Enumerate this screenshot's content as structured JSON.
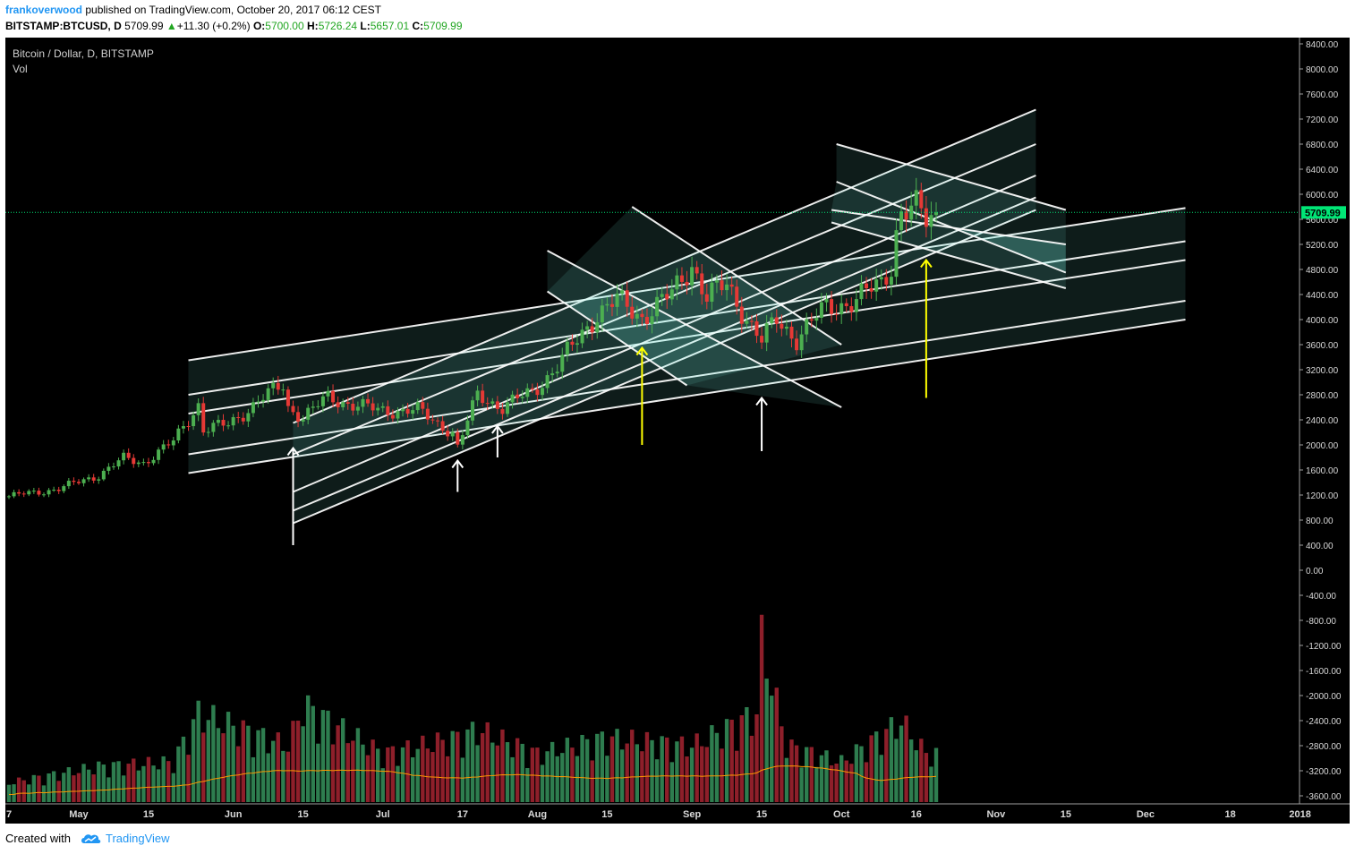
{
  "header": {
    "author": "frankoverwood",
    "published": "published on TradingView.com, October 20, 2017 06:12 CEST",
    "symbol": "BITSTAMP:BTCUSD, D",
    "last": "5709.99",
    "change_arrow": "▲",
    "change": "+11.30 (+0.2%)",
    "o_label": "O:",
    "o_val": "5700.00",
    "h_label": "H:",
    "h_val": "5726.24",
    "l_label": "L:",
    "l_val": "5657.01",
    "c_label": "C:",
    "c_val": "5709.99"
  },
  "footer": {
    "created_with": "Created with",
    "brand": "TradingView",
    "logo_icon": "tradingview-cloud-icon"
  },
  "colors": {
    "background": "#000000",
    "up": "#4caf50",
    "down": "#e53935",
    "vol_up": "#2e7d4f",
    "vol_down": "#8e1f2a",
    "channel_fill": "#7fffee",
    "channel_line": "#ffffff",
    "ma": "#ff9800",
    "arrow_yellow": "#ffff00",
    "arrow_white": "#ffffff",
    "price_label": "#00e676"
  },
  "chart_data": {
    "type": "candlestick",
    "title": "Bitcoin / Dollar, D, BITSTAMP",
    "subtitle": "Vol",
    "symbol": "BITSTAMP:BTCUSD",
    "interval": "D",
    "last_price": 5709.99,
    "last_price_label": "5709.99",
    "ylim": [
      -3800,
      8600
    ],
    "y_ticks": [
      "8400.00",
      "8000.00",
      "7600.00",
      "7200.00",
      "6800.00",
      "6400.00",
      "6000.00",
      "5600.00",
      "5200.00",
      "4800.00",
      "4400.00",
      "4000.00",
      "3600.00",
      "3200.00",
      "2800.00",
      "2400.00",
      "2000.00",
      "1600.00",
      "1200.00",
      "800.00",
      "400.00",
      "0.00",
      "-400.00",
      "-800.00",
      "-1200.00",
      "-1600.00",
      "-2000.00",
      "-2400.00",
      "-2800.00",
      "-3200.00",
      "-3600.00"
    ],
    "x_ticks": [
      {
        "label": "7",
        "date": "2017-04-17"
      },
      {
        "label": "May",
        "date": "2017-05-01"
      },
      {
        "label": "15",
        "date": "2017-05-15"
      },
      {
        "label": "Jun",
        "date": "2017-06-01"
      },
      {
        "label": "15",
        "date": "2017-06-15"
      },
      {
        "label": "Jul",
        "date": "2017-07-01"
      },
      {
        "label": "17",
        "date": "2017-07-17"
      },
      {
        "label": "Aug",
        "date": "2017-08-01"
      },
      {
        "label": "15",
        "date": "2017-08-15"
      },
      {
        "label": "Sep",
        "date": "2017-09-01"
      },
      {
        "label": "15",
        "date": "2017-09-15"
      },
      {
        "label": "Oct",
        "date": "2017-10-01"
      },
      {
        "label": "16",
        "date": "2017-10-16"
      },
      {
        "label": "Nov",
        "date": "2017-11-01"
      },
      {
        "label": "15",
        "date": "2017-11-15"
      },
      {
        "label": "Dec",
        "date": "2017-12-01"
      },
      {
        "label": "18",
        "date": "2017-12-18"
      },
      {
        "label": "2018",
        "date": "2018-01-01"
      }
    ],
    "price_path": [
      {
        "date": "2017-04-17",
        "price": 1180
      },
      {
        "date": "2017-04-27",
        "price": 1300
      },
      {
        "date": "2017-05-05",
        "price": 1520
      },
      {
        "date": "2017-05-10",
        "price": 1780
      },
      {
        "date": "2017-05-14",
        "price": 1720
      },
      {
        "date": "2017-05-20",
        "price": 2050
      },
      {
        "date": "2017-05-25",
        "price": 2650
      },
      {
        "date": "2017-05-26",
        "price": 2250
      },
      {
        "date": "2017-05-31",
        "price": 2320
      },
      {
        "date": "2017-06-06",
        "price": 2700
      },
      {
        "date": "2017-06-11",
        "price": 2950
      },
      {
        "date": "2017-06-12",
        "price": 2600
      },
      {
        "date": "2017-06-15",
        "price": 2450
      },
      {
        "date": "2017-06-20",
        "price": 2750
      },
      {
        "date": "2017-06-30",
        "price": 2550
      },
      {
        "date": "2017-07-08",
        "price": 2550
      },
      {
        "date": "2017-07-15",
        "price": 2200
      },
      {
        "date": "2017-07-16",
        "price": 1950
      },
      {
        "date": "2017-07-20",
        "price": 2800
      },
      {
        "date": "2017-07-25",
        "price": 2600
      },
      {
        "date": "2017-07-31",
        "price": 2850
      },
      {
        "date": "2017-08-05",
        "price": 3250
      },
      {
        "date": "2017-08-13",
        "price": 4100
      },
      {
        "date": "2017-08-17",
        "price": 4300
      },
      {
        "date": "2017-08-22",
        "price": 4050
      },
      {
        "date": "2017-08-28",
        "price": 4400
      },
      {
        "date": "2017-09-01",
        "price": 4900
      },
      {
        "date": "2017-09-04",
        "price": 4350
      },
      {
        "date": "2017-09-08",
        "price": 4550
      },
      {
        "date": "2017-09-13",
        "price": 3900
      },
      {
        "date": "2017-09-15",
        "price": 3650
      },
      {
        "date": "2017-09-18",
        "price": 4000
      },
      {
        "date": "2017-09-22",
        "price": 3700
      },
      {
        "date": "2017-09-28",
        "price": 4200
      },
      {
        "date": "2017-10-04",
        "price": 4300
      },
      {
        "date": "2017-10-09",
        "price": 4600
      },
      {
        "date": "2017-10-11",
        "price": 4900
      },
      {
        "date": "2017-10-12",
        "price": 5400
      },
      {
        "date": "2017-10-13",
        "price": 5700
      },
      {
        "date": "2017-10-16",
        "price": 5750
      },
      {
        "date": "2017-10-18",
        "price": 5600
      },
      {
        "date": "2017-10-20",
        "price": 5709.99
      }
    ],
    "volume_profile": [
      {
        "date": "2017-04-17",
        "level": 0.12
      },
      {
        "date": "2017-05-05",
        "level": 0.22
      },
      {
        "date": "2017-05-20",
        "level": 0.25
      },
      {
        "date": "2017-05-25",
        "level": 0.55
      },
      {
        "date": "2017-06-12",
        "level": 0.35
      },
      {
        "date": "2017-06-15",
        "level": 0.6
      },
      {
        "date": "2017-07-01",
        "level": 0.3
      },
      {
        "date": "2017-07-16",
        "level": 0.4
      },
      {
        "date": "2017-07-20",
        "level": 0.45
      },
      {
        "date": "2017-08-01",
        "level": 0.3
      },
      {
        "date": "2017-08-15",
        "level": 0.4
      },
      {
        "date": "2017-09-01",
        "level": 0.35
      },
      {
        "date": "2017-09-14",
        "level": 0.55
      },
      {
        "date": "2017-09-15",
        "level": 1.0
      },
      {
        "date": "2017-09-20",
        "level": 0.35
      },
      {
        "date": "2017-10-01",
        "level": 0.25
      },
      {
        "date": "2017-10-13",
        "level": 0.5
      },
      {
        "date": "2017-10-18",
        "level": 0.3
      }
    ],
    "channels": [
      {
        "kind": "ascending",
        "lines": [
          {
            "from": {
              "date": "2017-05-23",
              "price": 3350
            },
            "to": {
              "date": "2017-12-09",
              "price": 5780
            }
          },
          {
            "from": {
              "date": "2017-05-23",
              "price": 2800
            },
            "to": {
              "date": "2017-12-09",
              "price": 5250
            }
          },
          {
            "from": {
              "date": "2017-05-23",
              "price": 2500
            },
            "to": {
              "date": "2017-12-09",
              "price": 4950
            }
          },
          {
            "from": {
              "date": "2017-05-23",
              "price": 1850
            },
            "to": {
              "date": "2017-12-09",
              "price": 4300
            }
          },
          {
            "from": {
              "date": "2017-05-23",
              "price": 1550
            },
            "to": {
              "date": "2017-12-09",
              "price": 4000
            }
          }
        ]
      },
      {
        "kind": "ascending-steep",
        "lines": [
          {
            "from": {
              "date": "2017-06-13",
              "price": 2350
            },
            "to": {
              "date": "2017-11-09",
              "price": 7350
            }
          },
          {
            "from": {
              "date": "2017-06-13",
              "price": 1850
            },
            "to": {
              "date": "2017-11-09",
              "price": 6800
            }
          },
          {
            "from": {
              "date": "2017-06-13",
              "price": 1250
            },
            "to": {
              "date": "2017-11-09",
              "price": 6300
            }
          },
          {
            "from": {
              "date": "2017-06-13",
              "price": 950
            },
            "to": {
              "date": "2017-11-09",
              "price": 5950
            }
          },
          {
            "from": {
              "date": "2017-06-13",
              "price": 750
            },
            "to": {
              "date": "2017-11-09",
              "price": 5750
            }
          }
        ]
      },
      {
        "kind": "descending",
        "lines": [
          {
            "from": {
              "date": "2017-08-03",
              "price": 5100
            },
            "to": {
              "date": "2017-10-01",
              "price": 2600
            }
          },
          {
            "from": {
              "date": "2017-08-03",
              "price": 4450
            },
            "to": {
              "date": "2017-08-31",
              "price": 2950
            }
          },
          {
            "from": {
              "date": "2017-08-20",
              "price": 5800
            },
            "to": {
              "date": "2017-10-01",
              "price": 3600
            }
          }
        ]
      },
      {
        "kind": "descending-upper",
        "lines": [
          {
            "from": {
              "date": "2017-09-30",
              "price": 6800
            },
            "to": {
              "date": "2017-11-15",
              "price": 5750
            }
          },
          {
            "from": {
              "date": "2017-09-30",
              "price": 6200
            },
            "to": {
              "date": "2017-11-15",
              "price": 4750
            }
          },
          {
            "from": {
              "date": "2017-09-29",
              "price": 5750
            },
            "to": {
              "date": "2017-11-15",
              "price": 5200
            }
          },
          {
            "from": {
              "date": "2017-09-29",
              "price": 5550
            },
            "to": {
              "date": "2017-11-15",
              "price": 4500
            }
          }
        ]
      }
    ],
    "annotations": [
      {
        "type": "arrow",
        "color": "white",
        "date": "2017-06-13",
        "from": 400,
        "to": 1950
      },
      {
        "type": "arrow",
        "color": "white",
        "date": "2017-07-16",
        "from": 1250,
        "to": 1750
      },
      {
        "type": "arrow",
        "color": "white",
        "date": "2017-07-24",
        "from": 1800,
        "to": 2300
      },
      {
        "type": "arrow",
        "color": "yellow",
        "date": "2017-08-22",
        "from": 2000,
        "to": 3550
      },
      {
        "type": "arrow",
        "color": "white",
        "date": "2017-09-15",
        "from": 1900,
        "to": 2750
      },
      {
        "type": "arrow",
        "color": "yellow",
        "date": "2017-10-18",
        "from": 2750,
        "to": 4950
      }
    ]
  }
}
